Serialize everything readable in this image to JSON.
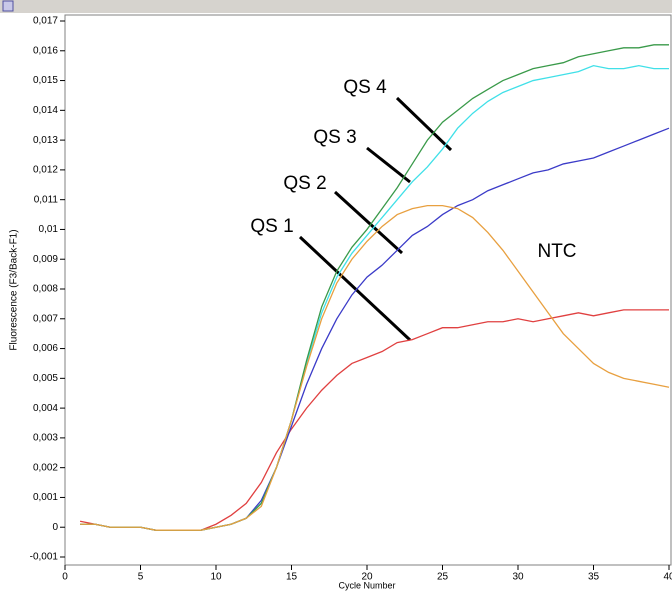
{
  "chart_data": {
    "type": "line",
    "ylabel": "Fluorescence (F3/Back-F1)",
    "xlabel": "Cycle Number",
    "x": [
      1,
      2,
      3,
      4,
      5,
      6,
      7,
      8,
      9,
      10,
      11,
      12,
      13,
      14,
      15,
      16,
      17,
      18,
      19,
      20,
      21,
      22,
      23,
      24,
      25,
      26,
      27,
      28,
      29,
      30,
      31,
      32,
      33,
      34,
      35,
      36,
      37,
      38,
      39,
      40
    ],
    "xlim": [
      0,
      40
    ],
    "xticks": [
      0,
      5,
      10,
      15,
      20,
      25,
      30,
      35,
      40
    ],
    "ylim": [
      -0.001,
      0.017
    ],
    "yticks": [
      {
        "value": -0.001,
        "label": "-0,001"
      },
      0,
      {
        "value": 0.001,
        "label": "0,001"
      },
      {
        "value": 0.002,
        "label": "0,002"
      },
      {
        "value": 0.003,
        "label": "0,003"
      },
      {
        "value": 0.004,
        "label": "0,004"
      },
      {
        "value": 0.005,
        "label": "0,005"
      },
      {
        "value": 0.006,
        "label": "0,006"
      },
      {
        "value": 0.007,
        "label": "0,007"
      },
      {
        "value": 0.008,
        "label": "0,008"
      },
      {
        "value": 0.009,
        "label": "0,009"
      },
      {
        "value": 0.01,
        "label": "0,01"
      },
      {
        "value": 0.011,
        "label": "0,011"
      },
      {
        "value": 0.012,
        "label": "0,012"
      },
      {
        "value": 0.013,
        "label": "0,013"
      },
      {
        "value": 0.014,
        "label": "0,014"
      },
      {
        "value": 0.015,
        "label": "0,015"
      },
      {
        "value": 0.016,
        "label": "0,016"
      },
      {
        "value": 0.017,
        "label": "0,017"
      }
    ],
    "series": [
      {
        "name": "QS 1",
        "color": "#e04040",
        "values": [
          0.0002,
          0.0001,
          0,
          0,
          0,
          -0.0001,
          -0.0001,
          -0.0001,
          -0.0001,
          0.0001,
          0.0004,
          0.0008,
          0.0015,
          0.0025,
          0.0033,
          0.004,
          0.0046,
          0.0051,
          0.0055,
          0.0057,
          0.0059,
          0.0062,
          0.0063,
          0.0065,
          0.0067,
          0.0067,
          0.0068,
          0.0069,
          0.0069,
          0.007,
          0.0069,
          0.007,
          0.0071,
          0.0072,
          0.0071,
          0.0072,
          0.0073,
          0.0073,
          0.0073,
          0.0073
        ]
      },
      {
        "name": "QS 2",
        "color": "#3b3bc8",
        "values": [
          0.0001,
          0.0001,
          0,
          0,
          0,
          -0.0001,
          -0.0001,
          -0.0001,
          -0.0001,
          0,
          0.0001,
          0.0003,
          0.0009,
          0.002,
          0.0034,
          0.0048,
          0.006,
          0.007,
          0.0078,
          0.0084,
          0.0088,
          0.0093,
          0.0098,
          0.0101,
          0.0105,
          0.0108,
          0.011,
          0.0113,
          0.0115,
          0.0117,
          0.0119,
          0.012,
          0.0122,
          0.0123,
          0.0124,
          0.0126,
          0.0128,
          0.013,
          0.0132,
          0.0134
        ]
      },
      {
        "name": "QS 3",
        "color": "#40e0e8",
        "values": [
          0.0001,
          0.0001,
          0,
          0,
          0,
          -0.0001,
          -0.0001,
          -0.0001,
          -0.0001,
          0,
          0.0001,
          0.0003,
          0.0008,
          0.002,
          0.0036,
          0.0055,
          0.0072,
          0.0084,
          0.0092,
          0.0098,
          0.0104,
          0.011,
          0.0116,
          0.0121,
          0.0127,
          0.0134,
          0.0139,
          0.0143,
          0.0146,
          0.0148,
          0.015,
          0.0151,
          0.0152,
          0.0153,
          0.0155,
          0.0154,
          0.0154,
          0.0155,
          0.0154,
          0.0154
        ]
      },
      {
        "name": "QS 4",
        "color": "#3a9a4a",
        "values": [
          0.0001,
          0.0001,
          0,
          0,
          0,
          -0.0001,
          -0.0001,
          -0.0001,
          -0.0001,
          0,
          0.0001,
          0.0003,
          0.0008,
          0.002,
          0.0036,
          0.0056,
          0.0074,
          0.0086,
          0.0094,
          0.01,
          0.0107,
          0.0114,
          0.0122,
          0.013,
          0.0136,
          0.014,
          0.0144,
          0.0147,
          0.015,
          0.0152,
          0.0154,
          0.0155,
          0.0156,
          0.0158,
          0.0159,
          0.016,
          0.0161,
          0.0161,
          0.0162,
          0.0162
        ]
      },
      {
        "name": "NTC",
        "color": "#e8a040",
        "values": [
          0.0001,
          0.0001,
          0,
          0,
          0,
          -0.0001,
          -0.0001,
          -0.0001,
          -0.0001,
          0,
          0.0001,
          0.0003,
          0.0007,
          0.002,
          0.0036,
          0.0054,
          0.007,
          0.0082,
          0.009,
          0.0096,
          0.0101,
          0.0105,
          0.0107,
          0.0108,
          0.0108,
          0.0107,
          0.0104,
          0.0099,
          0.0093,
          0.0086,
          0.0079,
          0.0072,
          0.0065,
          0.006,
          0.0055,
          0.0052,
          0.005,
          0.0049,
          0.0048,
          0.0047
        ]
      }
    ]
  }
}
